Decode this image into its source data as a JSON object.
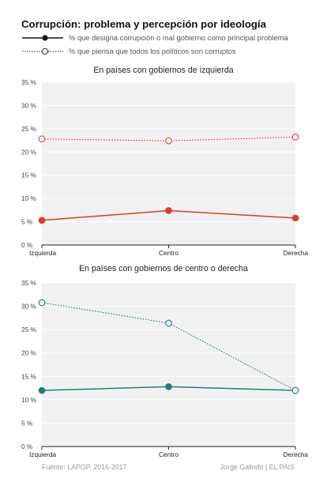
{
  "header": {
    "title": "Corrupción: problema y percepción por ideología",
    "legend": [
      {
        "label": "% que designa corrupción o mal gobierno como principal problema",
        "style": "solid-filled"
      },
      {
        "label": "% que piensa que todos los políticos son corruptos",
        "style": "dotted-open"
      }
    ]
  },
  "chart_data": [
    {
      "type": "line",
      "title": "En países con gobiernos de izquierda",
      "categories": [
        "Izquierda",
        "Centro",
        "Derecha"
      ],
      "ylim": [
        0,
        35
      ],
      "yticks": [
        "0 %",
        "5 %",
        "10 %",
        "15 %",
        "20 %",
        "25 %",
        "30 %",
        "35 %"
      ],
      "grid": true,
      "color": "#e03a2b",
      "series": [
        {
          "name": "% que designa corrupción o mal gobierno como principal problema",
          "values": [
            5.3,
            7.4,
            5.8
          ],
          "style": "solid-filled"
        },
        {
          "name": "% que piensa que todos los políticos son corruptos",
          "values": [
            22.8,
            22.4,
            23.2
          ],
          "style": "dotted-open"
        }
      ]
    },
    {
      "type": "line",
      "title": "En países con gobiernos  de centro o derecha",
      "categories": [
        "Izquierda",
        "Centro",
        "Derecha"
      ],
      "ylim": [
        0,
        35
      ],
      "yticks": [
        "0 %",
        "5 %",
        "10 %",
        "15 %",
        "20 %",
        "25 %",
        "30 %",
        "35 %"
      ],
      "grid": true,
      "color": "#267a78",
      "series": [
        {
          "name": "% que designa corrupción o mal gobierno como principal problema",
          "values": [
            12.0,
            12.8,
            12.0
          ],
          "style": "solid-filled"
        },
        {
          "name": "% que piensa que todos los políticos son corruptos",
          "values": [
            30.8,
            26.4,
            12.0
          ],
          "style": "dotted-open"
        }
      ]
    }
  ],
  "footer": {
    "source": "Fuente: LAPOP, 2016-2017",
    "credit": "Jorge Galindo | EL PAIS"
  }
}
